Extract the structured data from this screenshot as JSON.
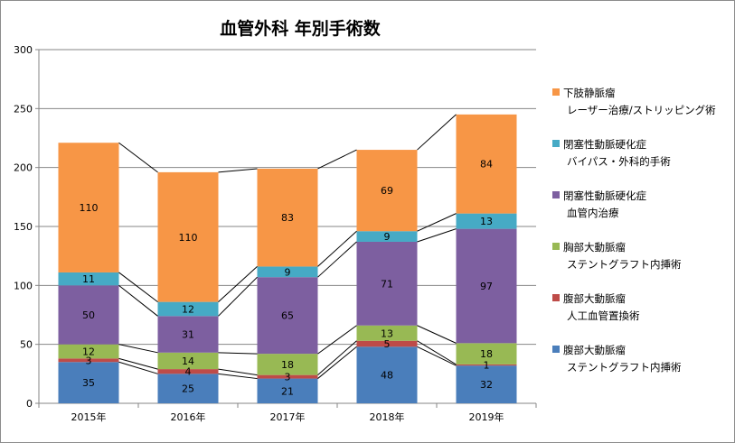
{
  "chart_data": {
    "type": "bar",
    "stacked": true,
    "title": "血管外科 年別手術数",
    "categories": [
      "2015年",
      "2016年",
      "2017年",
      "2018年",
      "2019年"
    ],
    "ylim": [
      0,
      300
    ],
    "yticks": [
      "0",
      "50",
      "100",
      "150",
      "200",
      "250",
      "300"
    ],
    "gridlines": true,
    "series_lines": true,
    "legend_position": "right",
    "series": [
      {
        "name_line1": "腹部大動脈瘤",
        "name_line2": "ステントグラフト内挿術",
        "color": "#4a7ebb",
        "values": [
          35,
          25,
          21,
          48,
          32
        ]
      },
      {
        "name_line1": "腹部大動脈瘤",
        "name_line2": "人工血管置換術",
        "color": "#be4b48",
        "values": [
          3,
          4,
          3,
          5,
          1
        ]
      },
      {
        "name_line1": "胸部大動脈瘤",
        "name_line2": "ステントグラフト内挿術",
        "color": "#98b954",
        "values": [
          12,
          14,
          18,
          13,
          18
        ]
      },
      {
        "name_line1": "閉塞性動脈硬化症",
        "name_line2": "血管内治療",
        "color": "#7d5fa0",
        "values": [
          50,
          31,
          65,
          71,
          97
        ]
      },
      {
        "name_line1": "閉塞性動脈硬化症",
        "name_line2": "バイパス・外科的手術",
        "color": "#46aac5",
        "values": [
          11,
          12,
          9,
          9,
          13
        ]
      },
      {
        "name_line1": "下肢静脈瘤",
        "name_line2": "レーザー治療/ストリッピング術",
        "color": "#f79646",
        "values": [
          110,
          110,
          83,
          69,
          84
        ]
      }
    ]
  }
}
